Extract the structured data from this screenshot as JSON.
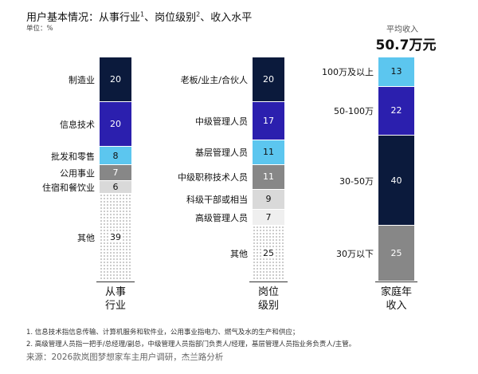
{
  "header": {
    "title": "用户基本情况：从事行业",
    "sup1": "1",
    "title_mid": "、岗位级别",
    "sup2": "2",
    "title_end": "、收入水平",
    "unit": "单位：%"
  },
  "average": {
    "label": "平均收入",
    "value": "50.7万元"
  },
  "chart_data": {
    "type": "bar",
    "stacked": true,
    "unit": "%",
    "colors": {
      "navy": "#0b1a3c",
      "purple": "#2b1fae",
      "light_blue": "#5cc6ef",
      "gray": "#878787",
      "light_gray": "#d9d9d9",
      "lighter_gray": "#efefef",
      "dotted": "dotted"
    },
    "bars": [
      {
        "label": "从事\n行业",
        "segments": [
          {
            "name": "制造业",
            "value": 20,
            "color": "#0b1a3c"
          },
          {
            "name": "信息技术",
            "value": 20,
            "color": "#2b1fae"
          },
          {
            "name": "批发和零售",
            "value": 8,
            "color": "#5cc6ef"
          },
          {
            "name": "公用事业",
            "value": 7,
            "color": "#878787"
          },
          {
            "name": "住宿和餐饮业",
            "value": 6,
            "color": "#d9d9d9"
          },
          {
            "name": "其他",
            "value": 39,
            "color": "dotted"
          }
        ]
      },
      {
        "label": "岗位\n级别",
        "segments": [
          {
            "name": "老板/业主/合伙人",
            "value": 20,
            "color": "#0b1a3c"
          },
          {
            "name": "中级管理人员",
            "value": 17,
            "color": "#2b1fae"
          },
          {
            "name": "基层管理人员",
            "value": 11,
            "color": "#5cc6ef"
          },
          {
            "name": "中级职称技术人员",
            "value": 11,
            "color": "#878787"
          },
          {
            "name": "科级干部或相当",
            "value": 9,
            "color": "#d9d9d9"
          },
          {
            "name": "高级管理人员",
            "value": 7,
            "color": "#efefef"
          },
          {
            "name": "其他",
            "value": 25,
            "color": "dotted"
          }
        ]
      },
      {
        "label": "家庭年\n收入",
        "segments": [
          {
            "name": "100万及以上",
            "value": 13,
            "color": "#5cc6ef"
          },
          {
            "name": "50-100万",
            "value": 22,
            "color": "#2b1fae"
          },
          {
            "name": "30-50万",
            "value": 40,
            "color": "#0b1a3c"
          },
          {
            "name": "30万以下",
            "value": 25,
            "color": "#878787"
          }
        ]
      }
    ]
  },
  "footnotes": [
    "1.   信息技术指信息传输、计算机服务和软件业，公用事业指电力、燃气及水的生产和供应；",
    "2.   高级管理人员指一把手/总经理/副总，中级管理人员指部门负责人/经理，基层管理人员指业务负责人/主管。"
  ],
  "source": "来源：2026款岚图梦想家车主用户调研，杰兰路分析"
}
